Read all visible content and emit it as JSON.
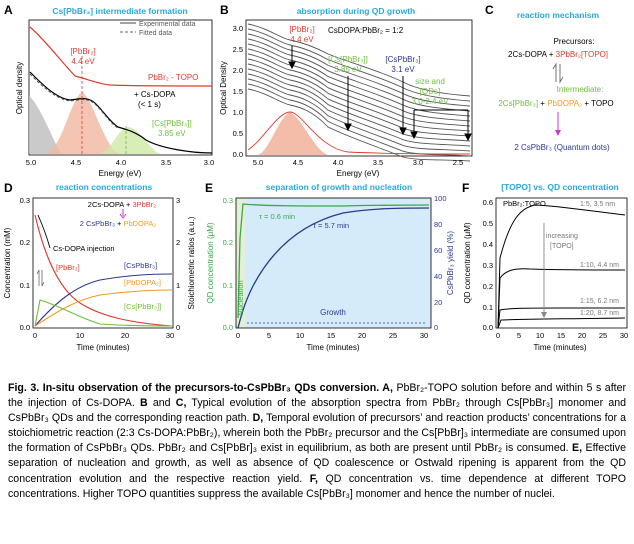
{
  "colors": {
    "blue_title": "#29a9d8",
    "red": "#e03a2f",
    "green": "#6fbe3a",
    "navy": "#2b3990",
    "orange": "#f39a1e",
    "magenta": "#c93cc7",
    "gray": "#777777"
  },
  "panelA": {
    "letter": "A",
    "title": "Cs[PbBr₃] intermediate formation",
    "legend_exp": "Experimental data",
    "legend_fit": "Fitted data",
    "lbl_pbbr2": "[PbBr₂]",
    "lbl_pbbr2_ev": "4.4 eV",
    "lbl_topo": "PbBr₂ - TOPO",
    "lbl_csdopa": "+ Cs-DOPA",
    "lbl_time": "(< 1 s)",
    "lbl_cs": "[Cs[PbBr₃]]",
    "lbl_cs_ev": "3.85 eV",
    "xlabel": "Energy (eV)",
    "ylabel": "Optical density",
    "xticks": [
      "5.0",
      "4.5",
      "4.0",
      "3.5",
      "3.0"
    ]
  },
  "panelB": {
    "letter": "B",
    "title": "absorption during QD growth",
    "ratio": "CsDOPA:PbBr₂ = 1:2",
    "lbl_pbbr2": "[PbBr₂]",
    "lbl_pbbr2_ev": "4.4 eV",
    "lbl_cs": "[Cs[PbBr₃]]",
    "lbl_cs_ev": "3.85 eV",
    "lbl_cspb": "[CsPbBr₃]",
    "lbl_cspb_ev": "3.1 eV",
    "lbl_size1": "size and",
    "lbl_size2": "[QDs]",
    "lbl_size3": "3.0-2.4 eV",
    "xlabel": "Energy (eV)",
    "ylabel": "Optical Density",
    "xticks": [
      "5.0",
      "4.5",
      "4.0",
      "3.5",
      "3.0",
      "2.5"
    ],
    "yticks": [
      "0.0",
      "0.5",
      "1.0",
      "1.5",
      "2.0",
      "2.5",
      "3.0"
    ]
  },
  "panelC": {
    "letter": "C",
    "title": "reaction mechanism",
    "precursors": "Precursors:",
    "eq_black": "2Cs-DOPA + ",
    "eq_red": "3PbBr₂[TOPO]",
    "intermediate": "Intermediate:",
    "int_green": "2Cs[PbBr₃]",
    "int_plus1": " + ",
    "int_orange": "PbDOPA₂",
    "int_rest": " + TOPO",
    "product": "2 CsPbBr₃ (Quantum dots)"
  },
  "panelD": {
    "letter": "D",
    "title": "reaction concentrations",
    "eq_black": "2Cs-DOPA + ",
    "eq_red": "3PbBr₂",
    "eq2_navy": "2 CsPbBr₃",
    "eq2_plus": " + ",
    "eq2_orange": "PbDOPA₂",
    "injection": "Cs-DOPA injection",
    "lbl_pbbr2": "[PbBr₂]",
    "lbl_cspb": "[CsPbBr₃]",
    "lbl_pbdopa": "[PbDOPA₂]",
    "lbl_cs": "[Cs[PbBr₃]]",
    "xlabel": "Time (minutes)",
    "ylabel": "Concentration (mM)",
    "ylabel2": "Stoichiometric ratios (a.u.)",
    "xticks": [
      "0",
      "10",
      "20",
      "30"
    ],
    "yticks": [
      "0.0",
      "0.1",
      "0.2",
      "0.3"
    ],
    "y2ticks": [
      "0",
      "1",
      "2",
      "3"
    ]
  },
  "panelE": {
    "letter": "E",
    "title": "separation of growth and nucleation",
    "tau1": "τ = 0.6 min",
    "tau2": "τ = 5.7 min",
    "nucleation": "Nucleation",
    "growth": "Growth",
    "xlabel": "Time (minutes)",
    "ylabel": "QD concentration (μM)",
    "ylabel2": "CsPbBr₃ yield (%)",
    "xticks": [
      "0",
      "5",
      "10",
      "15",
      "20",
      "25",
      "30"
    ],
    "yticks": [
      "0.0",
      "0.1",
      "0.2",
      "0.3"
    ],
    "y2ticks": [
      "0",
      "20",
      "40",
      "60",
      "80",
      "100"
    ]
  },
  "panelF": {
    "letter": "F",
    "title": "[TOPO] vs. QD concentration",
    "lbl_top": "PbBr₂:TOPO",
    "c1": "1:5, 3.5 nm",
    "c2": "1:10, 4.4 nm",
    "c3": "1:15, 6.2 nm",
    "c4": "1:20, 8.7 nm",
    "inc1": "increasing",
    "inc2": "[TOPO]",
    "xlabel": "Time (minutes)",
    "ylabel": "QD concentration (μM)",
    "xticks": [
      "0",
      "5",
      "10",
      "15",
      "20",
      "25",
      "30"
    ],
    "yticks": [
      "0.0",
      "0.1",
      "0.2",
      "0.3",
      "0.4",
      "0.5",
      "0.6"
    ]
  },
  "caption": {
    "bold": "Fig. 3. In-situ observation of the precursors-to-CsPbBr₃ QDs conversion. A,",
    "tA": " PbBr₂-TOPO solution before and within 5 s after the injection of Cs-DOPA. ",
    "bB": "B",
    "tand": " and ",
    "bC": "C,",
    "tBC": " Typical evolution of the absorption spectra from PbBr₂ through Cs[PbBr₃] monomer and CsPbBr₃ QDs and the corresponding reaction path. ",
    "bD": "D,",
    "tD": " Temporal evolution of precursors’ and reaction products’ concentrations for a stoichiometric reaction (2:3 Cs-DOPA:PbBr₂), wherein both the PbBr₂ precursor and the Cs[PbBr]₃ intermediate are consumed upon the formation of CsPbBr₃ QDs. PbBr₂ and Cs[PbBr]₃ exist in equilibrium, as both are present until PbBr₂ is consumed. ",
    "bE": "E,",
    "tE": " Effective separation of nucleation and growth, as well as absence of QD coalescence or Ostwald ripening is apparent from the QD concentration evolution and the respective reaction yield. ",
    "bF": "F,",
    "tF": " QD concentration vs. time dependence at different TOPO concentrations. Higher TOPO quantities suppress the available Cs[PbBr₃] monomer and hence the number of nuclei."
  }
}
